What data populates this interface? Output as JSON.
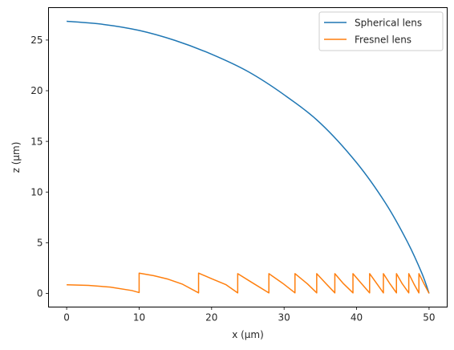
{
  "chart_data": {
    "type": "line",
    "xlabel": "x (μm)",
    "ylabel": "z (μm)",
    "xlim": [
      -2.5,
      52.5
    ],
    "ylim": [
      -1.35,
      28.2
    ],
    "xticks": [
      0,
      10,
      20,
      30,
      40,
      50
    ],
    "yticks": [
      0,
      5,
      10,
      15,
      20,
      25
    ],
    "grid": false,
    "legend_placement": "top-right",
    "series": [
      {
        "name": "Spherical lens",
        "color": "#1f77b4",
        "points": [
          [
            0,
            26.85
          ],
          [
            5,
            26.55
          ],
          [
            10,
            25.95
          ],
          [
            15,
            24.95
          ],
          [
            20,
            23.6
          ],
          [
            25,
            21.9
          ],
          [
            30,
            19.6
          ],
          [
            35,
            16.8
          ],
          [
            40,
            12.9
          ],
          [
            44,
            8.9
          ],
          [
            47,
            5.1
          ],
          [
            49,
            2.0
          ],
          [
            50,
            0.0
          ]
        ]
      },
      {
        "name": "Fresnel lens",
        "color": "#ff7f0e",
        "points": [
          [
            0,
            0.85
          ],
          [
            3,
            0.79
          ],
          [
            6,
            0.62
          ],
          [
            9,
            0.28
          ],
          [
            10,
            0.08
          ],
          [
            10,
            2.0
          ],
          [
            12,
            1.75
          ],
          [
            14,
            1.4
          ],
          [
            16,
            0.9
          ],
          [
            18.2,
            0.05
          ],
          [
            18.2,
            2.0
          ],
          [
            20,
            1.45
          ],
          [
            22,
            0.85
          ],
          [
            23.6,
            0.05
          ],
          [
            23.6,
            1.95
          ],
          [
            25.5,
            1.1
          ],
          [
            27.9,
            0.05
          ],
          [
            27.9,
            1.95
          ],
          [
            29.8,
            1.0
          ],
          [
            31.5,
            0.05
          ],
          [
            31.5,
            1.95
          ],
          [
            33.2,
            0.95
          ],
          [
            34.5,
            0.05
          ],
          [
            34.5,
            1.95
          ],
          [
            35.8,
            0.95
          ],
          [
            37.0,
            0.05
          ],
          [
            37.0,
            1.95
          ],
          [
            38.2,
            0.95
          ],
          [
            39.5,
            0.05
          ],
          [
            39.5,
            1.95
          ],
          [
            40.7,
            0.95
          ],
          [
            41.8,
            0.05
          ],
          [
            41.8,
            1.95
          ],
          [
            42.8,
            0.95
          ],
          [
            43.7,
            0.05
          ],
          [
            43.7,
            1.95
          ],
          [
            44.6,
            0.95
          ],
          [
            45.5,
            0.05
          ],
          [
            45.5,
            1.95
          ],
          [
            46.3,
            0.95
          ],
          [
            47.2,
            0.05
          ],
          [
            47.2,
            1.95
          ],
          [
            47.9,
            0.95
          ],
          [
            48.6,
            0.05
          ],
          [
            48.6,
            1.95
          ],
          [
            49.3,
            0.95
          ],
          [
            50.0,
            0.0
          ]
        ]
      }
    ]
  }
}
